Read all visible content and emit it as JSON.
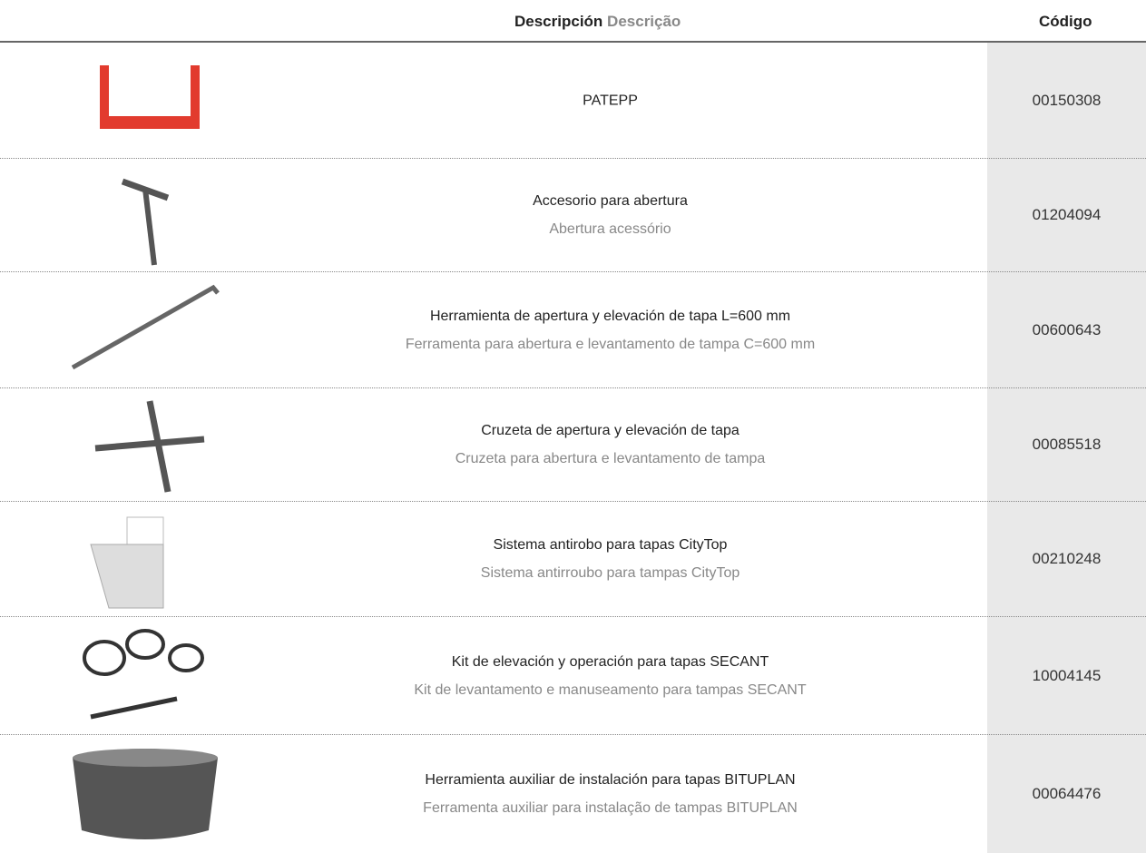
{
  "table": {
    "header": {
      "description_es": "Descripción",
      "description_pt": "Descrição",
      "code": "Código"
    },
    "rows": [
      {
        "es": "PATEPP",
        "code": "00150308"
      },
      {
        "es": "Accesorio para abertura",
        "pt": "Abertura acessório",
        "code": "01204094"
      },
      {
        "es": "Herramienta de apertura y elevación de tapa L=600 mm",
        "pt": "Ferramenta para abertura e levantamento de tampa C=600 mm",
        "code": "00600643"
      },
      {
        "es": "Cruzeta de apertura y elevación de tapa",
        "pt": "Cruzeta para abertura e levantamento de tampa",
        "code": "00085518"
      },
      {
        "es": "Sistema antirobo para tapas CityTop",
        "pt": "Sistema antirroubo para tampas CityTop",
        "code": "00210248"
      },
      {
        "es": "Kit de elevación y operación para tapas SECANT",
        "pt": "Kit de levantamento e manuseamento para tampas SECANT",
        "code": "10004145"
      },
      {
        "es": "Herramienta auxiliar de instalación para tapas BITUPLAN",
        "pt": "Ferramenta auxiliar para instalação de tampas BITUPLAN",
        "code": "00064476"
      }
    ]
  }
}
